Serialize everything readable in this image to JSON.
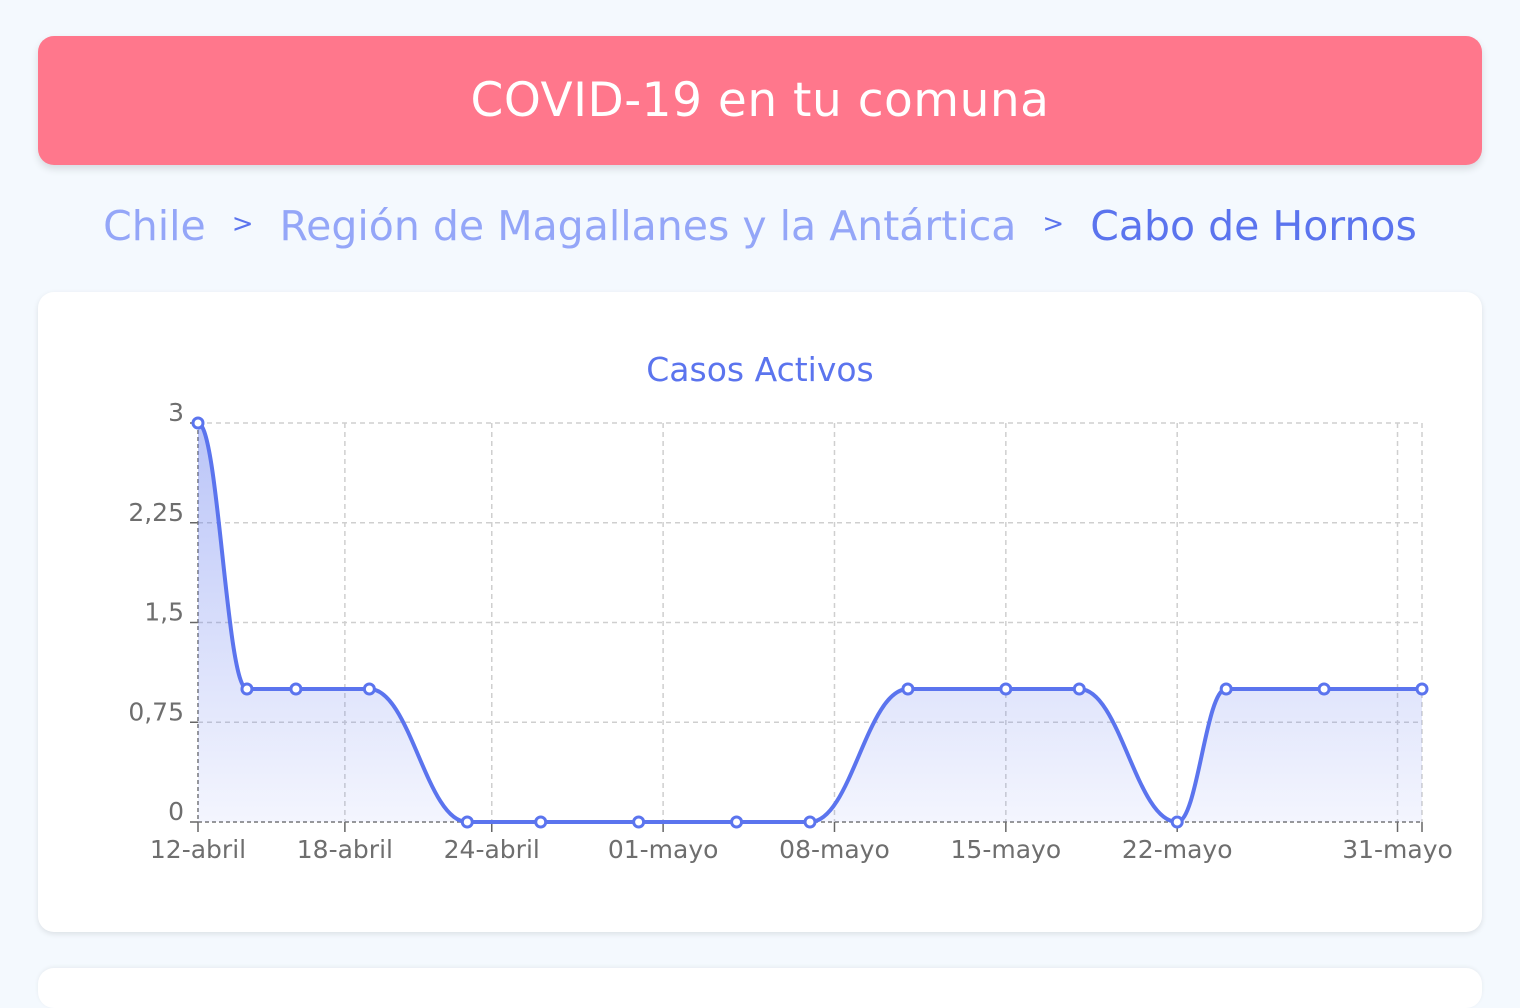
{
  "header": {
    "title": "COVID-19 en tu comuna",
    "color": "#ff778c"
  },
  "breadcrumb": {
    "items": [
      "Chile",
      "Región de Magallanes y la Antártica",
      "Cabo de Hornos"
    ],
    "separator": ">"
  },
  "colors": {
    "accent": "#5b74ee",
    "breadcrumb_link": "#94a6f8",
    "background": "#f4f9fe"
  },
  "chart_data": {
    "type": "area",
    "title": "Casos Activos",
    "xlabel": "",
    "ylabel": "",
    "grid": true,
    "ylim": [
      0,
      3
    ],
    "yticks": [
      "0",
      "0,75",
      "1,5",
      "2,25",
      "3"
    ],
    "yticks_values": [
      0,
      0.75,
      1.5,
      2.25,
      3
    ],
    "x_tick_labels": [
      "12-abril",
      "18-abril",
      "24-abril",
      "01-mayo",
      "08-mayo",
      "15-mayo",
      "22-mayo",
      "31-mayo"
    ],
    "x_tick_dates": [
      "2020-04-12",
      "2020-04-18",
      "2020-04-24",
      "2020-05-01",
      "2020-05-08",
      "2020-05-15",
      "2020-05-22",
      "2020-05-31"
    ],
    "xlim": [
      "2020-04-12",
      "2020-06-01"
    ],
    "series": [
      {
        "x": [
          "2020-04-12",
          "2020-04-14",
          "2020-04-16",
          "2020-04-19",
          "2020-04-23",
          "2020-04-26",
          "2020-04-30",
          "2020-05-04",
          "2020-05-07",
          "2020-05-11",
          "2020-05-15",
          "2020-05-18",
          "2020-05-22",
          "2020-05-24",
          "2020-05-28",
          "2020-06-01"
        ],
        "y": [
          3,
          1,
          1,
          1,
          0,
          0,
          0,
          0,
          0,
          1,
          1,
          1,
          0,
          1,
          1,
          1
        ]
      }
    ]
  }
}
